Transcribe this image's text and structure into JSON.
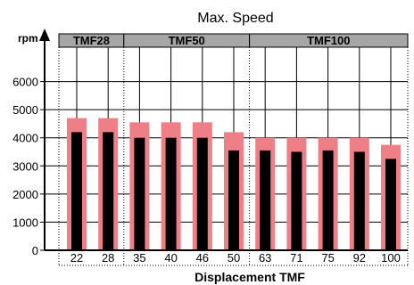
{
  "chart_data": {
    "type": "bar",
    "title": "Max. Speed",
    "ylabel": "rpm",
    "xlabel": "Displacement TMF",
    "ylim": [
      0,
      7000
    ],
    "yticks": [
      "0",
      "1000",
      "2000",
      "3000",
      "4000",
      "5000",
      "6000"
    ],
    "categories": [
      "22",
      "28",
      "35",
      "40",
      "46",
      "50",
      "63",
      "71",
      "75",
      "92",
      "100"
    ],
    "groups": [
      {
        "label": "TMF28",
        "count": 2
      },
      {
        "label": "TMF50",
        "count": 4
      },
      {
        "label": "TMF100",
        "count": 5
      }
    ],
    "series": [
      {
        "values": [
          4700,
          4700,
          4550,
          4550,
          4550,
          4200,
          4000,
          4000,
          4000,
          4000,
          3750
        ],
        "color": "#ee7f86"
      },
      {
        "values": [
          4200,
          4200,
          4000,
          4000,
          4000,
          3550,
          3550,
          3500,
          3550,
          3500,
          3250
        ],
        "color": "#000000"
      }
    ],
    "grid": true,
    "group_header_color": "#a6a6a6"
  }
}
